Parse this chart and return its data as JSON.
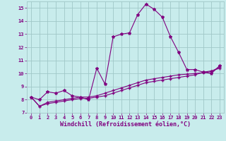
{
  "xlabel": "Windchill (Refroidissement éolien,°C)",
  "bg_color": "#c8ecec",
  "line_color": "#800080",
  "grid_color": "#a0c8c8",
  "x_series1": [
    0,
    1,
    2,
    3,
    4,
    5,
    6,
    7,
    8,
    9,
    10,
    11,
    12,
    13,
    14,
    15,
    16,
    17,
    18,
    19,
    20,
    21,
    22,
    23
  ],
  "y_series1": [
    8.2,
    8.0,
    8.6,
    8.5,
    8.7,
    8.3,
    8.2,
    8.0,
    10.4,
    9.2,
    12.8,
    13.0,
    13.1,
    14.5,
    15.3,
    14.9,
    14.3,
    12.8,
    11.6,
    10.3,
    10.3,
    10.1,
    10.0,
    10.6
  ],
  "x_series2": [
    0,
    1,
    2,
    3,
    4,
    5,
    6,
    7,
    8,
    9,
    10,
    11,
    12,
    13,
    14,
    15,
    16,
    17,
    18,
    19,
    20,
    21,
    22,
    23
  ],
  "y_series2": [
    8.2,
    7.5,
    7.7,
    7.8,
    7.9,
    8.0,
    8.1,
    8.1,
    8.2,
    8.3,
    8.5,
    8.7,
    8.9,
    9.1,
    9.3,
    9.4,
    9.5,
    9.6,
    9.7,
    9.8,
    9.9,
    10.1,
    10.2,
    10.4
  ],
  "x_series3": [
    0,
    1,
    2,
    3,
    4,
    5,
    6,
    7,
    8,
    9,
    10,
    11,
    12,
    13,
    14,
    15,
    16,
    17,
    18,
    19,
    20,
    21,
    22,
    23
  ],
  "y_series3": [
    8.2,
    7.5,
    7.8,
    7.9,
    8.0,
    8.1,
    8.2,
    8.2,
    8.3,
    8.5,
    8.7,
    8.9,
    9.1,
    9.3,
    9.5,
    9.6,
    9.7,
    9.8,
    9.9,
    9.95,
    10.0,
    10.05,
    10.15,
    10.5
  ],
  "ylim": [
    7,
    15.5
  ],
  "xlim": [
    -0.5,
    23.5
  ],
  "yticks": [
    7,
    8,
    9,
    10,
    11,
    12,
    13,
    14,
    15
  ],
  "xticks": [
    0,
    1,
    2,
    3,
    4,
    5,
    6,
    7,
    8,
    9,
    10,
    11,
    12,
    13,
    14,
    15,
    16,
    17,
    18,
    19,
    20,
    21,
    22,
    23
  ],
  "tick_fontsize": 5.0,
  "xlabel_fontsize": 6.0,
  "lw": 0.8,
  "marker1": "*",
  "marker2": "+",
  "markersize1": 3.0,
  "markersize2": 2.5
}
